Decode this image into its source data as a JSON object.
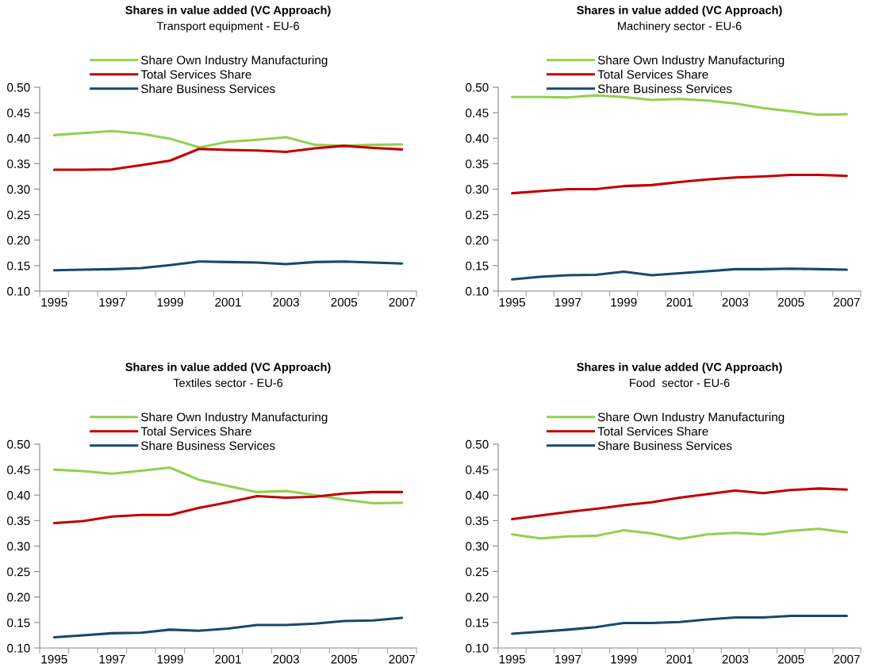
{
  "chart_data": [
    {
      "type": "line",
      "title": "Shares in value added (VC Approach)",
      "subtitle": "Transport equipment - EU-6",
      "categories": [
        "1995",
        null,
        "1997",
        null,
        "1999",
        null,
        "2001",
        null,
        "2003",
        null,
        "2005",
        null,
        "2007"
      ],
      "ylim": [
        0.1,
        0.5
      ],
      "yticks": [
        {
          "value": 0.1,
          "label": "0.10"
        },
        {
          "value": 0.15,
          "label": "0.15"
        },
        {
          "value": 0.2,
          "label": "0.20"
        },
        {
          "value": 0.25,
          "label": "0.25"
        },
        {
          "value": 0.3,
          "label": "0.30"
        },
        {
          "value": 0.35,
          "label": "0.35"
        },
        {
          "value": 0.4,
          "label": "0.40"
        },
        {
          "value": 0.45,
          "label": "0.45"
        },
        {
          "value": 0.5,
          "label": "0.50"
        }
      ],
      "legend": "top left",
      "series": [
        {
          "name": "Share Own Industry Manufacturing",
          "color": "#92d050",
          "values": [
            0.406,
            0.41,
            0.414,
            0.409,
            0.399,
            0.382,
            0.393,
            0.397,
            0.402,
            0.387,
            0.385,
            0.387,
            0.388
          ]
        },
        {
          "name": "Total Services Share",
          "color": "#c00000",
          "values": [
            0.338,
            0.338,
            0.339,
            0.347,
            0.356,
            0.379,
            0.377,
            0.376,
            0.373,
            0.38,
            0.385,
            0.381,
            0.378
          ]
        },
        {
          "name": "Share Business Services",
          "color": "#17496e",
          "values": [
            0.141,
            0.142,
            0.143,
            0.145,
            0.151,
            0.158,
            0.157,
            0.156,
            0.153,
            0.157,
            0.158,
            0.156,
            0.154
          ]
        }
      ]
    },
    {
      "type": "line",
      "title": "Shares in value added (VC Approach)",
      "subtitle": "Machinery sector - EU-6",
      "categories": [
        "1995",
        null,
        "1997",
        null,
        "1999",
        null,
        "2001",
        null,
        "2003",
        null,
        "2005",
        null,
        "2007"
      ],
      "ylim": [
        0.1,
        0.5
      ],
      "yticks": [
        {
          "value": 0.1,
          "label": "0.10"
        },
        {
          "value": 0.15,
          "label": "0.15"
        },
        {
          "value": 0.2,
          "label": "0.20"
        },
        {
          "value": 0.25,
          "label": "0.25"
        },
        {
          "value": 0.3,
          "label": "0.30"
        },
        {
          "value": 0.35,
          "label": "0.35"
        },
        {
          "value": 0.4,
          "label": "0.40"
        },
        {
          "value": 0.45,
          "label": "0.45"
        },
        {
          "value": 0.5,
          "label": "0.50"
        }
      ],
      "legend": "top left",
      "series": [
        {
          "name": "Share Own Industry Manufacturing",
          "color": "#92d050",
          "values": [
            0.481,
            0.481,
            0.48,
            0.484,
            0.481,
            0.475,
            0.477,
            0.474,
            0.468,
            0.459,
            0.453,
            0.446,
            0.447
          ]
        },
        {
          "name": "Total Services Share",
          "color": "#c00000",
          "values": [
            0.292,
            0.296,
            0.3,
            0.3,
            0.306,
            0.308,
            0.314,
            0.319,
            0.323,
            0.325,
            0.328,
            0.328,
            0.326
          ]
        },
        {
          "name": "Share Business Services",
          "color": "#17496e",
          "values": [
            0.123,
            0.128,
            0.131,
            0.132,
            0.138,
            0.131,
            0.135,
            0.139,
            0.143,
            0.143,
            0.144,
            0.143,
            0.142
          ]
        }
      ]
    },
    {
      "type": "line",
      "title": "Shares in value added (VC Approach)",
      "subtitle": "Textiles sector - EU-6",
      "categories": [
        "1995",
        null,
        "1997",
        null,
        "1999",
        null,
        "2001",
        null,
        "2003",
        null,
        "2005",
        null,
        "2007"
      ],
      "ylim": [
        0.1,
        0.5
      ],
      "yticks": [
        {
          "value": 0.1,
          "label": "0.10"
        },
        {
          "value": 0.15,
          "label": "0.15"
        },
        {
          "value": 0.2,
          "label": "0.20"
        },
        {
          "value": 0.25,
          "label": "0.25"
        },
        {
          "value": 0.3,
          "label": "0.30"
        },
        {
          "value": 0.35,
          "label": "0.35"
        },
        {
          "value": 0.4,
          "label": "0.40"
        },
        {
          "value": 0.45,
          "label": "0.45"
        },
        {
          "value": 0.5,
          "label": "0.50"
        }
      ],
      "legend": "top left",
      "series": [
        {
          "name": "Share Own Industry Manufacturing",
          "color": "#92d050",
          "values": [
            0.45,
            0.447,
            0.442,
            0.448,
            0.454,
            0.43,
            0.418,
            0.406,
            0.408,
            0.4,
            0.391,
            0.384,
            0.385
          ]
        },
        {
          "name": "Total Services Share",
          "color": "#c00000",
          "values": [
            0.345,
            0.349,
            0.358,
            0.361,
            0.361,
            0.375,
            0.386,
            0.398,
            0.395,
            0.397,
            0.403,
            0.406,
            0.406
          ]
        },
        {
          "name": "Share Business Services",
          "color": "#17496e",
          "values": [
            0.121,
            0.125,
            0.129,
            0.13,
            0.136,
            0.134,
            0.138,
            0.145,
            0.145,
            0.148,
            0.153,
            0.154,
            0.159
          ]
        }
      ]
    },
    {
      "type": "line",
      "title": "Shares in value added (VC Approach)",
      "subtitle": "Food  sector - EU-6",
      "categories": [
        "1995",
        null,
        "1997",
        null,
        "1999",
        null,
        "2001",
        null,
        "2003",
        null,
        "2005",
        null,
        "2007"
      ],
      "ylim": [
        0.1,
        0.5
      ],
      "yticks": [
        {
          "value": 0.1,
          "label": "0.10"
        },
        {
          "value": 0.15,
          "label": "0.15"
        },
        {
          "value": 0.2,
          "label": "0.20"
        },
        {
          "value": 0.25,
          "label": "0.25"
        },
        {
          "value": 0.3,
          "label": "0.30"
        },
        {
          "value": 0.35,
          "label": "0.35"
        },
        {
          "value": 0.4,
          "label": "0.40"
        },
        {
          "value": 0.45,
          "label": "0.45"
        },
        {
          "value": 0.5,
          "label": "0.50"
        }
      ],
      "legend": "top left",
      "series": [
        {
          "name": "Share Own Industry Manufacturing",
          "color": "#92d050",
          "values": [
            0.323,
            0.315,
            0.319,
            0.32,
            0.331,
            0.325,
            0.314,
            0.323,
            0.326,
            0.323,
            0.33,
            0.334,
            0.327
          ]
        },
        {
          "name": "Total Services Share",
          "color": "#c00000",
          "values": [
            0.353,
            0.36,
            0.367,
            0.373,
            0.38,
            0.386,
            0.395,
            0.402,
            0.409,
            0.404,
            0.41,
            0.413,
            0.411
          ]
        },
        {
          "name": "Share Business Services",
          "color": "#17496e",
          "values": [
            0.128,
            0.132,
            0.136,
            0.141,
            0.149,
            0.149,
            0.151,
            0.156,
            0.16,
            0.16,
            0.163,
            0.163,
            0.163
          ]
        }
      ]
    }
  ]
}
